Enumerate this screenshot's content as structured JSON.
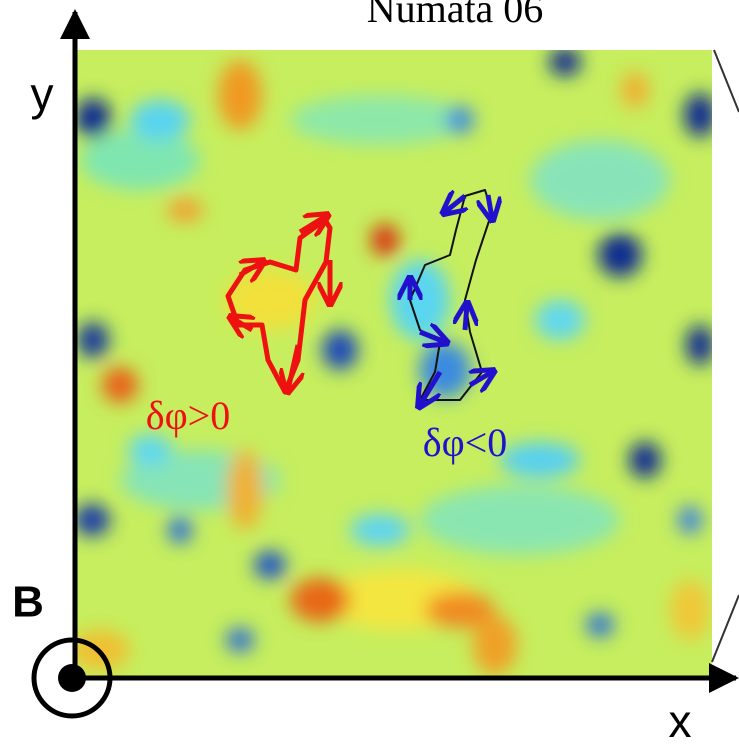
{
  "title": "Numata 06",
  "axes": {
    "y": "y",
    "x": "x",
    "field": "B"
  },
  "labels": {
    "positive": "δφ>0",
    "negative": "δφ<0"
  }
}
